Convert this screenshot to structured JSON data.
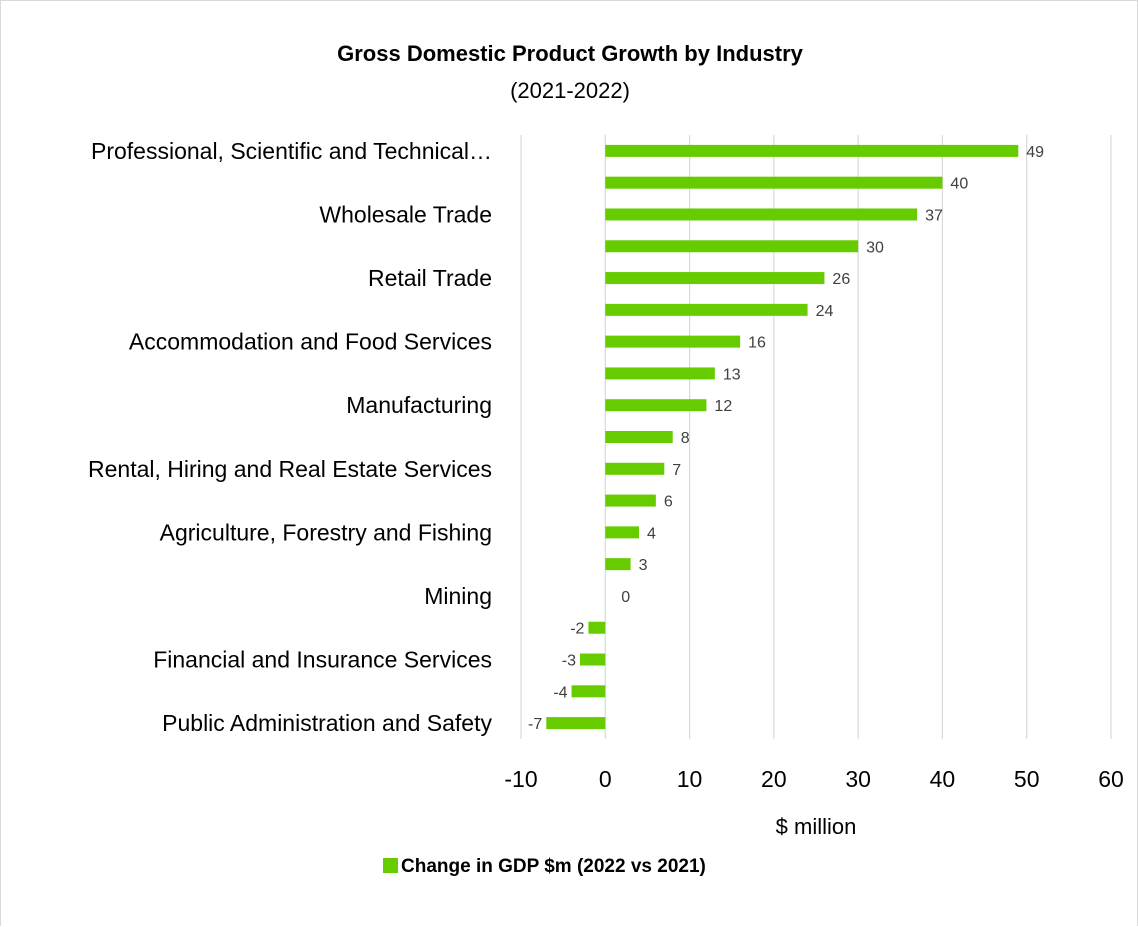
{
  "chart_data": {
    "type": "bar",
    "orientation": "horizontal",
    "title": "Gross Domestic Product Growth by Industry",
    "subtitle": "(2021-2022)",
    "xlabel": "$ million",
    "xlim": [
      -10,
      60
    ],
    "x_ticks": [
      "-10",
      "0",
      "10",
      "20",
      "30",
      "40",
      "50",
      "60"
    ],
    "x_tick_values": [
      -10,
      0,
      10,
      20,
      30,
      40,
      50,
      60
    ],
    "grid": "vertical",
    "legend_position": "bottom",
    "series_color": "#66cc00",
    "categories": [
      "Professional, Scientific and Technical…",
      "",
      "Wholesale Trade",
      "",
      "Retail Trade",
      "",
      "Accommodation and Food Services",
      "",
      "Manufacturing",
      "",
      "Rental, Hiring and Real Estate Services",
      "",
      "Agriculture, Forestry and Fishing",
      "",
      "Mining",
      "",
      "Financial and Insurance Services",
      "",
      "Public Administration and Safety"
    ],
    "series": [
      {
        "name": "Change in GDP $m (2022 vs 2021)",
        "values": [
          49,
          40,
          37,
          30,
          26,
          24,
          16,
          13,
          12,
          8,
          7,
          6,
          4,
          3,
          0,
          -2,
          -3,
          -4,
          -7
        ],
        "labels": [
          "49",
          "40",
          "37",
          "30",
          "26",
          "24",
          "16",
          "13",
          "12",
          "8",
          "7",
          "6",
          "4",
          "3",
          "0",
          "-2",
          "-3",
          "-4",
          "-7"
        ]
      }
    ]
  }
}
